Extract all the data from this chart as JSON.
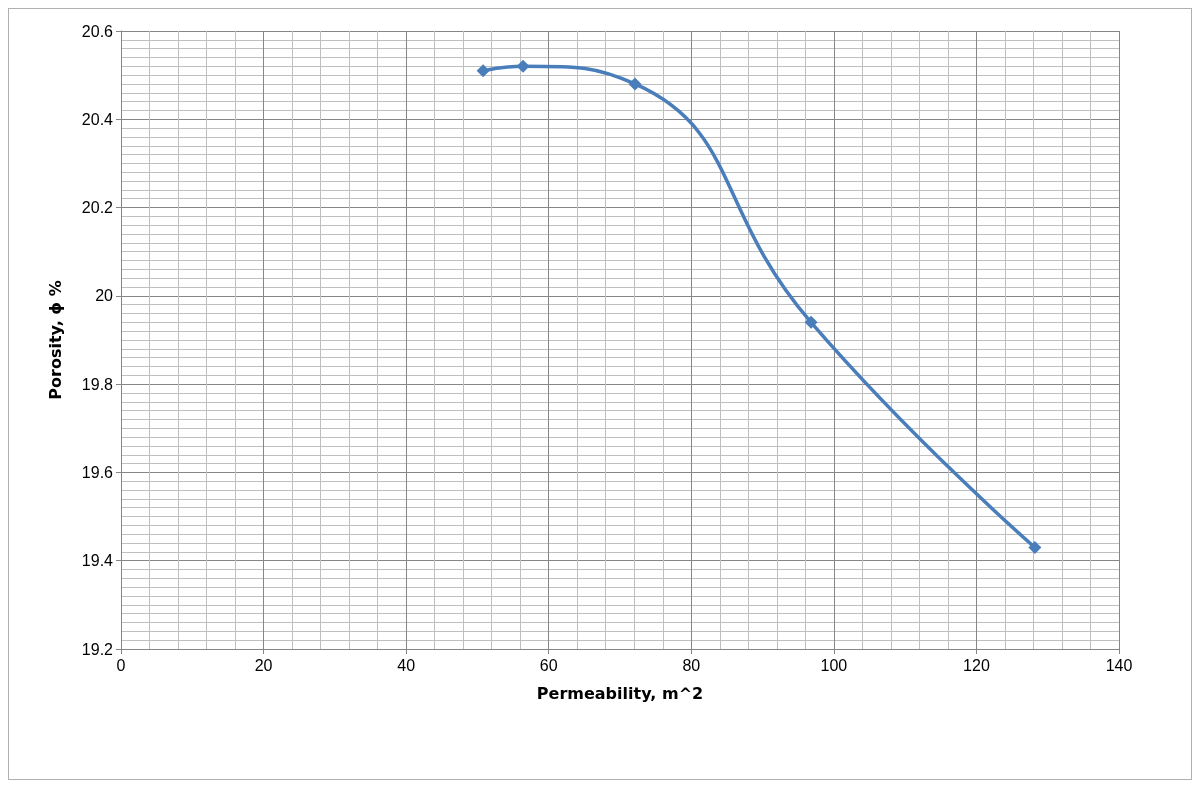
{
  "chart_data": {
    "type": "line",
    "xlabel": "Permeability, m^2",
    "ylabel": "Porosity, ϕ %",
    "x": [
      50.8,
      56.4,
      72.1,
      96.8,
      128.2
    ],
    "series": [
      {
        "color": "#4a7ebb",
        "values": [
          20.51,
          20.52,
          20.48,
          19.94,
          19.43
        ]
      }
    ],
    "xlim": [
      0,
      140
    ],
    "xticks": [
      0,
      20,
      40,
      60,
      80,
      100,
      120,
      140
    ],
    "ylim": [
      19.2,
      20.6
    ],
    "yticks": [
      19.2,
      19.4,
      19.6,
      19.8,
      20,
      20.2,
      20.4,
      20.6
    ],
    "grid": true,
    "marker": "diamond",
    "line_style": "solid"
  }
}
